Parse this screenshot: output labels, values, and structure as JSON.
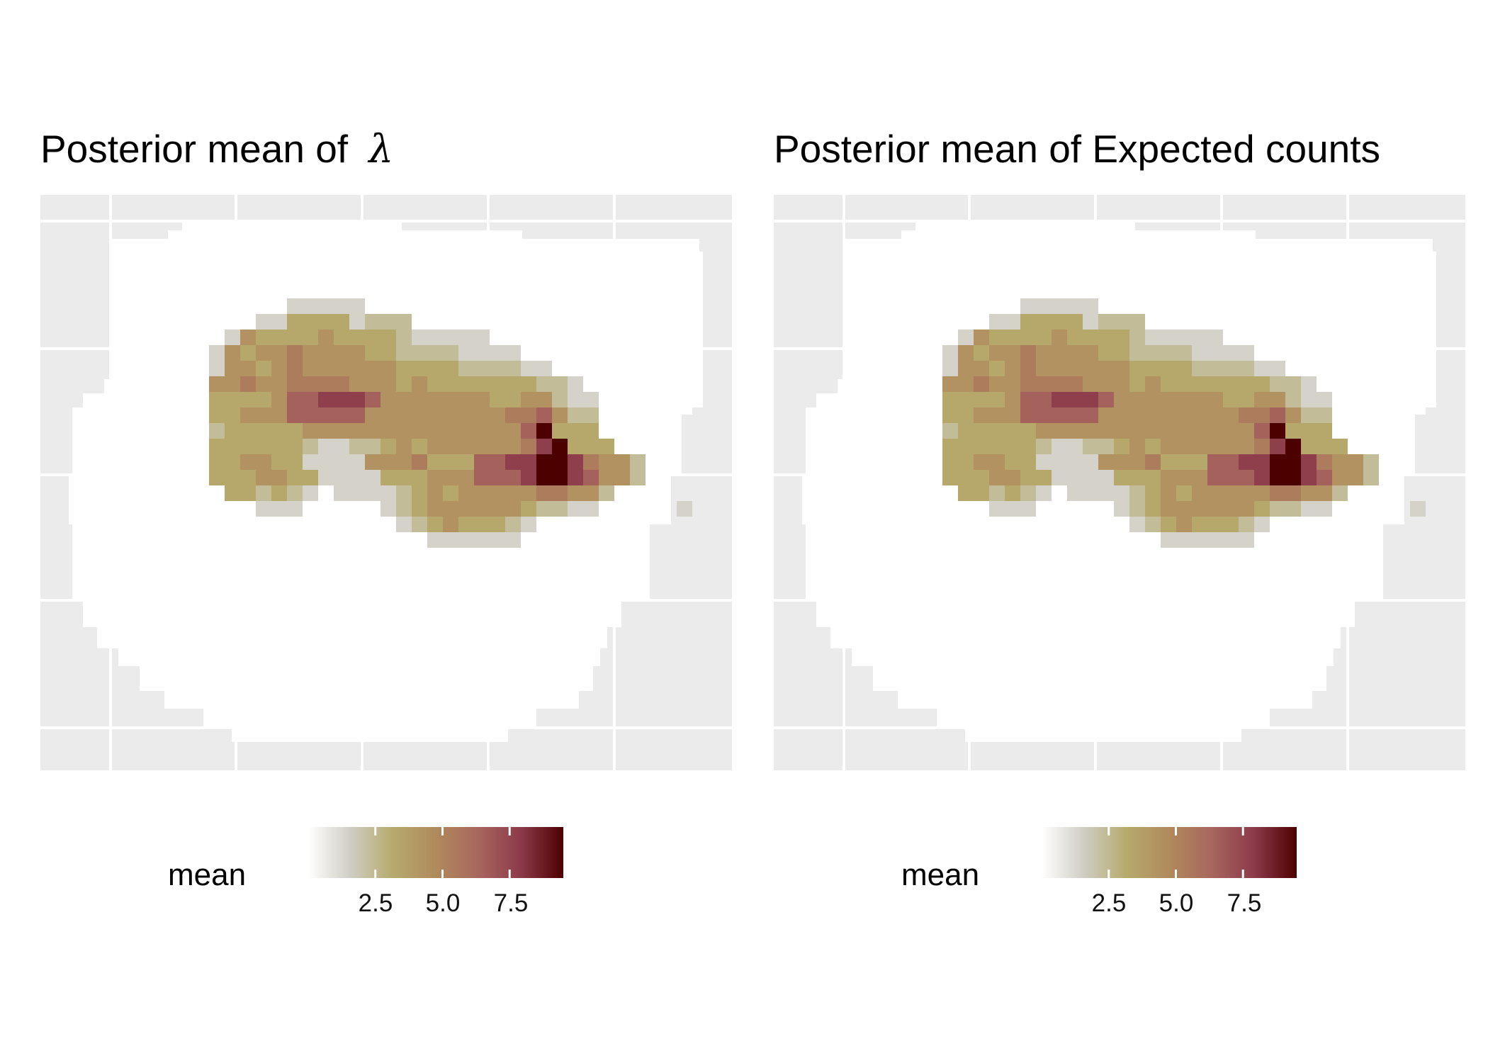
{
  "chart_data": [
    {
      "type": "heatmap",
      "title": "Posterior mean of  λ",
      "legend": {
        "title": "mean",
        "ticks": [
          "2.5",
          "5.0",
          "7.5"
        ],
        "tick_values": [
          2.5,
          5.0,
          7.5
        ],
        "range": [
          0,
          9.5
        ],
        "position": "bottom"
      },
      "grid": true,
      "color_scale": [
        "#ffffff",
        "#cfcdc3",
        "#b6aa6c",
        "#b08a5c",
        "#a8665e",
        "#8c3a4a",
        "#4d0000"
      ],
      "shape": "Z..............................................|Z..............................................|Z.......................................####...|Z...........#########################......#...|Z...........########################.......#...|Z.........#######.#####.................#####..|Z.........#####...................###########..|Z.........##...........................#######.|Z.......###.............................######.|Z......####..............................######.|Z.....#####..............................######.|Z.....######...........................#######.|Z....#######...........................#######.|Z...########...........................#######.|Z...###################.....................###|Z...##..............................#########..|Z...#..............................##########..|Z...##############################.#########..|Z..###....................................###..|Z..###...................................###...|Z..###...................................###...|Z..##..........................#####...........|Z..####..........................................|Z....##########################.................|Z....#########################...................|Z.....########################...................|Z......######################...................|Z........###################.....................|Z..........#############.........................|Z.............####################################",
      "values": [
        "........................................................",
        "........................................................",
        "..........1111111111111111111111........................",
        ".........111111111111111111111111111111111..............",
        "........11111111111111111111111111111111111.............",
        "........11111122222111111111111111111111111.............",
        ".......1111122444423331111111111111111111111............",
        "......11112544445444432222211111111111111111............",
        "......11125455655554433332222111111111111111............",
        ".....111125545655555544443333221111111111111............",
        ".....111155655666655545444444433211111111111............",
        ".....111144445778887555555544553221111111111............",
        "....1111144555777775555555556675331111111111............",
        "....1111134444455555555555555794441111111111............",
        "....11111444444322334545555556894441111111111...........",
        "....11111445544222255564447788998655311111111...........",
        "....1111144455442222444555777899875531111111............",
        ".....111114434321222234545555566553111111111............",
        ".....1111111222111112345555554332211111211111...........",
        "......111111111111111234544432111111111111..............",
        "......11111111111111111222222111111111111...............",
        ".......111111111111111111111111111111111................",
        ".......111111111111111111111111111111111................",
        "........11111111111111111111111111111111................",
        "........1111111111111111111111111111111.................",
        ".........11111111111111111111111111111..................",
        "..........1111111111111111111111111111..................",
        "...........11111111111111111111111111...................",
        "............1111111111111111111111111...................",
        "..............111111111111111111111.....................",
        "................11111111111111111.......................",
        "........................................................"
      ]
    },
    {
      "type": "heatmap",
      "title": "Posterior mean of Expected counts",
      "legend": {
        "title": "mean",
        "ticks": [
          "2.5",
          "5.0",
          "7.5"
        ],
        "tick_values": [
          2.5,
          5.0,
          7.5
        ],
        "range": [
          0,
          9.5
        ],
        "position": "bottom"
      },
      "grid": true,
      "color_scale": [
        "#ffffff",
        "#cfcdc3",
        "#b6aa6c",
        "#b08a5c",
        "#a8665e",
        "#8c3a4a",
        "#4d0000"
      ]
    }
  ],
  "panels": {
    "left": {
      "title_prefix": "Posterior mean of ",
      "title_symbol": "λ",
      "legend_title": "mean",
      "ticks": [
        "2.5",
        "5.0",
        "7.5"
      ]
    },
    "right": {
      "title": "Posterior mean of Expected counts",
      "legend_title": "mean",
      "ticks": [
        "2.5",
        "5.0",
        "7.5"
      ]
    }
  }
}
